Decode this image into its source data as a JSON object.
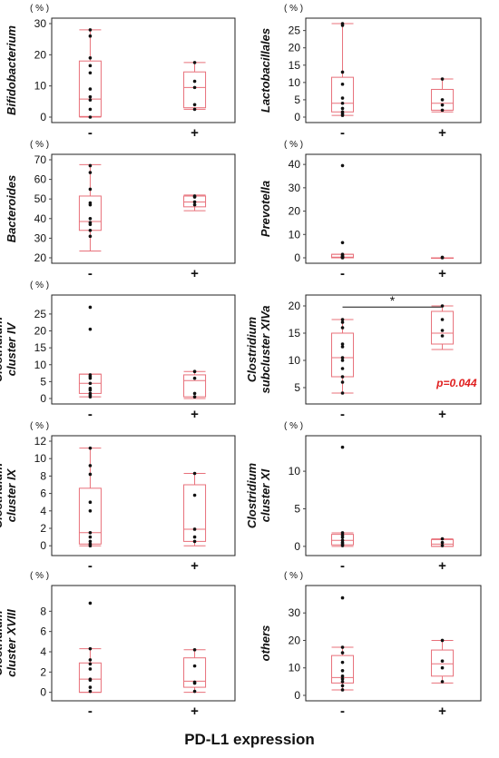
{
  "xlabel": "PD-L1 expression",
  "colors": {
    "box": "#e8707a",
    "point": "#111111",
    "frame": "#222222",
    "axis": "#444444",
    "pvalue": "#e02020"
  },
  "chart_data": [
    {
      "type": "box",
      "unit": "( % )",
      "ylabel": [
        "Bifidobacterium"
      ],
      "ylim": [
        0,
        30
      ],
      "yticks": [
        0,
        10,
        20,
        30
      ],
      "categories": [
        "-",
        "+"
      ],
      "groups": [
        {
          "category": "-",
          "whisker_low": 0,
          "q1": 0.2,
          "median": 5.8,
          "q3": 18,
          "whisker_high": 28,
          "points": [
            28,
            26,
            19,
            16.5,
            14.2,
            9,
            6.5,
            5.5,
            2.5,
            0
          ]
        },
        {
          "category": "+",
          "whisker_low": 2.5,
          "q1": 3,
          "median": 9.5,
          "q3": 14.5,
          "whisker_high": 17.5,
          "points": [
            17.5,
            11.5,
            9.5,
            4,
            2.5
          ]
        }
      ]
    },
    {
      "type": "box",
      "unit": "( % )",
      "ylabel": [
        "Lactobacillales"
      ],
      "ylim": [
        0,
        27
      ],
      "yticks": [
        0,
        5,
        10,
        15,
        20,
        25
      ],
      "categories": [
        "-",
        "+"
      ],
      "groups": [
        {
          "category": "-",
          "whisker_low": 0.5,
          "q1": 1.5,
          "median": 4,
          "q3": 11.5,
          "whisker_high": 27,
          "points": [
            27,
            26.5,
            13,
            9.5,
            5.5,
            4,
            2.5,
            1.5,
            1,
            0.5
          ]
        },
        {
          "category": "+",
          "whisker_low": 1.5,
          "q1": 2,
          "median": 4,
          "q3": 8,
          "whisker_high": 11,
          "points": [
            11,
            5,
            3.5,
            2
          ]
        }
      ]
    },
    {
      "type": "box",
      "unit": "( % )",
      "ylabel": [
        "Bacteroides"
      ],
      "ylim": [
        20,
        70
      ],
      "yticks": [
        20,
        30,
        40,
        50,
        60,
        70
      ],
      "categories": [
        "-",
        "+"
      ],
      "groups": [
        {
          "category": "-",
          "whisker_low": 23.5,
          "q1": 34,
          "median": 38.5,
          "q3": 51.5,
          "whisker_high": 67.5,
          "points": [
            67,
            63.5,
            55,
            48,
            47,
            40,
            38,
            37,
            34,
            31
          ]
        },
        {
          "category": "+",
          "whisker_low": 44,
          "q1": 46,
          "median": 48.5,
          "q3": 51.5,
          "whisker_high": 52,
          "points": [
            51.5,
            51,
            48.5,
            47
          ]
        }
      ]
    },
    {
      "type": "box",
      "unit": "( % )",
      "ylabel": [
        "Prevotella"
      ],
      "ylim": [
        0,
        42
      ],
      "yticks": [
        0,
        10,
        20,
        30,
        40
      ],
      "categories": [
        "-",
        "+"
      ],
      "groups": [
        {
          "category": "-",
          "whisker_low": 0,
          "q1": 0,
          "median": 0.3,
          "q3": 1.5,
          "whisker_high": 1.5,
          "points": [
            39.5,
            6.5,
            1.5,
            1,
            0.5,
            0.3,
            0.2,
            0.1,
            0
          ]
        },
        {
          "category": "+",
          "whisker_low": 0,
          "q1": 0,
          "median": 0,
          "q3": 0,
          "whisker_high": 0,
          "points": [
            0.2,
            0
          ]
        }
      ]
    },
    {
      "type": "box",
      "unit": "( % )",
      "ylabel": [
        "Clostridium",
        "cluster IV"
      ],
      "ylim": [
        0,
        29
      ],
      "yticks": [
        0,
        5,
        10,
        15,
        20,
        25
      ],
      "categories": [
        "-",
        "+"
      ],
      "groups": [
        {
          "category": "-",
          "whisker_low": 0.5,
          "q1": 1.5,
          "median": 4.5,
          "q3": 7.2,
          "whisker_high": 7.2,
          "points": [
            27,
            20.5,
            7,
            6.5,
            6,
            4.5,
            3,
            2.5,
            1.5,
            1,
            0.5
          ]
        },
        {
          "category": "+",
          "whisker_low": 0,
          "q1": 0.5,
          "median": 5.3,
          "q3": 7,
          "whisker_high": 8,
          "points": [
            8,
            6,
            1.5,
            0.5
          ]
        }
      ]
    },
    {
      "type": "box",
      "unit": "",
      "ylabel": [
        "Clostridium",
        "subcluster XIVa"
      ],
      "ylim": [
        3,
        21
      ],
      "yticks": [
        5,
        10,
        15,
        20
      ],
      "categories": [
        "-",
        "+"
      ],
      "significance": {
        "label": "*",
        "p_text": "p=0.044"
      },
      "groups": [
        {
          "category": "-",
          "whisker_low": 4,
          "q1": 7,
          "median": 10.5,
          "q3": 15,
          "whisker_high": 17.5,
          "points": [
            17.5,
            17,
            16,
            13,
            12.5,
            10.5,
            10,
            8.5,
            7,
            6,
            4
          ]
        },
        {
          "category": "+",
          "whisker_low": 12,
          "q1": 13,
          "median": 15,
          "q3": 19,
          "whisker_high": 20,
          "points": [
            20,
            17.5,
            15.5,
            14.5
          ]
        }
      ]
    },
    {
      "type": "box",
      "unit": "( % )",
      "ylabel": [
        "Clostridium",
        "cluster IX"
      ],
      "ylim": [
        -0.5,
        12
      ],
      "yticks": [
        0,
        2,
        4,
        6,
        8,
        10,
        12
      ],
      "categories": [
        "-",
        "+"
      ],
      "groups": [
        {
          "category": "-",
          "whisker_low": 0,
          "q1": 0.2,
          "median": 1.5,
          "q3": 6.6,
          "whisker_high": 11.2,
          "points": [
            11.2,
            9.2,
            8.2,
            5,
            4,
            1.5,
            1,
            0.5,
            0.2,
            0
          ]
        },
        {
          "category": "+",
          "whisker_low": 0,
          "q1": 0.5,
          "median": 1.9,
          "q3": 7,
          "whisker_high": 8.3,
          "points": [
            8.3,
            5.8,
            1.9,
            1,
            0.5
          ]
        }
      ]
    },
    {
      "type": "box",
      "unit": "( % )",
      "ylabel": [
        "Clostridium",
        "cluster XI"
      ],
      "ylim": [
        -0.5,
        14
      ],
      "yticks": [
        0,
        5,
        10
      ],
      "categories": [
        "-",
        "+"
      ],
      "groups": [
        {
          "category": "-",
          "whisker_low": 0,
          "q1": 0.2,
          "median": 0.8,
          "q3": 1.6,
          "whisker_high": 1.8,
          "points": [
            13.2,
            1.8,
            1.5,
            1.2,
            0.8,
            0.5,
            0.3,
            0.1
          ]
        },
        {
          "category": "+",
          "whisker_low": 0,
          "q1": 0,
          "median": 0.3,
          "q3": 0.9,
          "whisker_high": 1,
          "points": [
            1,
            0.5,
            0.1
          ]
        }
      ]
    },
    {
      "type": "box",
      "unit": "( % )",
      "ylabel": [
        "Clostridium",
        "cluster XVIII"
      ],
      "ylim": [
        -0.3,
        10
      ],
      "yticks": [
        0,
        2,
        4,
        6,
        8
      ],
      "categories": [
        "-",
        "+"
      ],
      "groups": [
        {
          "category": "-",
          "whisker_low": 0,
          "q1": 0,
          "median": 1.3,
          "q3": 2.9,
          "whisker_high": 4.3,
          "points": [
            8.8,
            4.3,
            3.2,
            2.8,
            2.3,
            1.3,
            1.2,
            0.5,
            0.1
          ]
        },
        {
          "category": "+",
          "whisker_low": 0,
          "q1": 0.5,
          "median": 1.1,
          "q3": 3.4,
          "whisker_high": 4.2,
          "points": [
            4.2,
            2.6,
            1,
            0.9,
            0.1
          ]
        }
      ]
    },
    {
      "type": "box",
      "unit": "( % )",
      "ylabel": [
        "others"
      ],
      "ylim": [
        0,
        38
      ],
      "yticks": [
        0,
        10,
        20,
        30
      ],
      "categories": [
        "-",
        "+"
      ],
      "groups": [
        {
          "category": "-",
          "whisker_low": 2,
          "q1": 4.5,
          "median": 6.5,
          "q3": 14.5,
          "whisker_high": 17.5,
          "points": [
            35.5,
            17.5,
            15.5,
            12,
            9,
            7,
            6,
            5,
            3.5,
            2
          ]
        },
        {
          "category": "+",
          "whisker_low": 4.5,
          "q1": 7,
          "median": 11.5,
          "q3": 16.5,
          "whisker_high": 20,
          "points": [
            20,
            12.5,
            10,
            5
          ]
        }
      ]
    }
  ]
}
